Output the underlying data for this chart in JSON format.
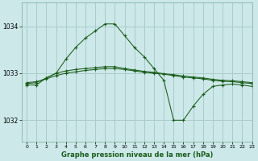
{
  "title": "Graphe pression niveau de la mer (hPa)",
  "background_color": "#cce8e8",
  "grid_color": "#aacccc",
  "line_color": "#1a5c1a",
  "xlim": [
    -0.5,
    23
  ],
  "ylim": [
    1031.55,
    1034.5
  ],
  "yticks": [
    1032,
    1033,
    1034
  ],
  "xticks": [
    0,
    1,
    2,
    3,
    4,
    5,
    6,
    7,
    8,
    9,
    10,
    11,
    12,
    13,
    14,
    15,
    16,
    17,
    18,
    19,
    20,
    21,
    22,
    23
  ],
  "series": [
    {
      "x": [
        0,
        1,
        2,
        3,
        4,
        5,
        6,
        7,
        8,
        9,
        10,
        11,
        12,
        13,
        14,
        15,
        16,
        17,
        18,
        19,
        20,
        21,
        22,
        23
      ],
      "y": [
        1032.8,
        1032.82,
        1032.88,
        1032.95,
        1033.0,
        1033.03,
        1033.06,
        1033.08,
        1033.1,
        1033.1,
        1033.08,
        1033.05,
        1033.02,
        1033.0,
        1032.98,
        1032.95,
        1032.92,
        1032.9,
        1032.88,
        1032.85,
        1032.83,
        1032.82,
        1032.8,
        1032.78
      ]
    },
    {
      "x": [
        0,
        1,
        2,
        3,
        4,
        5,
        6,
        7,
        8,
        9,
        10,
        11,
        12,
        13,
        14,
        15,
        16,
        17,
        18,
        19,
        20,
        21,
        22,
        23
      ],
      "y": [
        1032.78,
        1032.8,
        1032.9,
        1033.0,
        1033.05,
        1033.08,
        1033.1,
        1033.12,
        1033.14,
        1033.14,
        1033.1,
        1033.07,
        1033.04,
        1033.02,
        1032.99,
        1032.97,
        1032.94,
        1032.92,
        1032.9,
        1032.87,
        1032.85,
        1032.84,
        1032.82,
        1032.8
      ]
    },
    {
      "x": [
        0,
        1,
        2,
        3,
        4,
        5,
        6,
        7,
        8,
        9,
        10,
        11,
        12,
        13,
        14,
        15,
        16,
        17,
        18,
        19,
        20,
        21,
        22,
        23
      ],
      "y": [
        1032.75,
        1032.75,
        1032.9,
        1033.0,
        1033.3,
        1033.55,
        1033.75,
        1033.9,
        1034.05,
        1034.05,
        1033.8,
        1033.55,
        1033.35,
        1033.1,
        1032.85,
        1032.0,
        1032.0,
        1032.3,
        1032.55,
        1032.72,
        1032.75,
        1032.77,
        1032.75,
        1032.72
      ]
    }
  ]
}
